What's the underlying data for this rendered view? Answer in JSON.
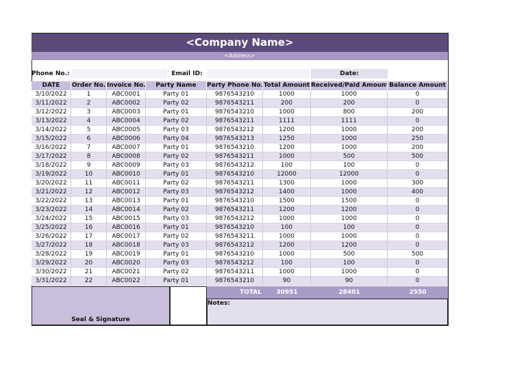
{
  "header": {
    "company": "<Company Name>",
    "address": "<Address>",
    "phone_label": "Phone No.:",
    "email_label": "Email ID:",
    "date_label": "Date:"
  },
  "table": {
    "columns": [
      "DATE",
      "Order No.",
      "Invoice No.",
      "Party Name",
      "Party Phone No.",
      "Total Amount",
      "Received/Paid Amount",
      "Balance Amount"
    ],
    "rows": [
      [
        "3/10/2022",
        1,
        "ABC0001",
        "Party 01",
        "9876543210",
        1000,
        1000,
        0
      ],
      [
        "3/11/2022",
        2,
        "ABC0002",
        "Party 02",
        "9876543211",
        200,
        200,
        0
      ],
      [
        "3/12/2022",
        3,
        "ABC0003",
        "Party 01",
        "9876543210",
        1000,
        800,
        200
      ],
      [
        "3/13/2022",
        4,
        "ABC0004",
        "Party 02",
        "9876543211",
        1111,
        1111,
        0
      ],
      [
        "3/14/2022",
        5,
        "ABC0005",
        "Party 03",
        "9876543212",
        1200,
        1000,
        200
      ],
      [
        "3/15/2022",
        6,
        "ABC0006",
        "Party 04",
        "9876543213",
        1250,
        1000,
        250
      ],
      [
        "3/16/2022",
        7,
        "ABC0007",
        "Party 01",
        "9876543210",
        1200,
        1000,
        200
      ],
      [
        "3/17/2022",
        8,
        "ABC0008",
        "Party 02",
        "9876543211",
        1000,
        500,
        500
      ],
      [
        "3/18/2022",
        9,
        "ABC0009",
        "Party 03",
        "9876543212",
        100,
        100,
        0
      ],
      [
        "3/19/2022",
        10,
        "ABC0010",
        "Party 01",
        "9876543210",
        12000,
        12000,
        0
      ],
      [
        "3/20/2022",
        11,
        "ABC0011",
        "Party 02",
        "9876543211",
        1300,
        1000,
        300
      ],
      [
        "3/21/2022",
        12,
        "ABC0012",
        "Party 03",
        "9876543212",
        1400,
        1000,
        400
      ],
      [
        "3/22/2022",
        13,
        "ABC0013",
        "Party 01",
        "9876543210",
        1500,
        1500,
        0
      ],
      [
        "3/23/2022",
        14,
        "ABC0014",
        "Party 02",
        "9876543211",
        1200,
        1200,
        0
      ],
      [
        "3/24/2022",
        15,
        "ABC0015",
        "Party 03",
        "9876543212",
        1000,
        1000,
        0
      ],
      [
        "3/25/2022",
        16,
        "ABC0016",
        "Party 01",
        "9876543210",
        100,
        100,
        0
      ],
      [
        "3/26/2022",
        17,
        "ABC0017",
        "Party 02",
        "9876543211",
        1000,
        1000,
        0
      ],
      [
        "3/27/2022",
        18,
        "ABC0018",
        "Party 03",
        "9876543212",
        1200,
        1200,
        0
      ],
      [
        "3/28/2022",
        19,
        "ABC0019",
        "Party 01",
        "9876543210",
        1000,
        500,
        500
      ],
      [
        "3/29/2022",
        20,
        "ABC0020",
        "Party 03",
        "9876543212",
        100,
        100,
        0
      ],
      [
        "3/30/2022",
        21,
        "ABC0021",
        "Party 02",
        "9876543211",
        1000,
        1000,
        0
      ],
      [
        "3/31/2022",
        22,
        "ABC0022",
        "Party 01",
        "9876543210",
        90,
        90,
        0
      ]
    ]
  },
  "totals": {
    "label": "TOTAL",
    "total_amount": 30951,
    "received": 28401,
    "balance": 2550
  },
  "footer": {
    "seal": "Seal & Signature",
    "notes": "Notes:"
  }
}
